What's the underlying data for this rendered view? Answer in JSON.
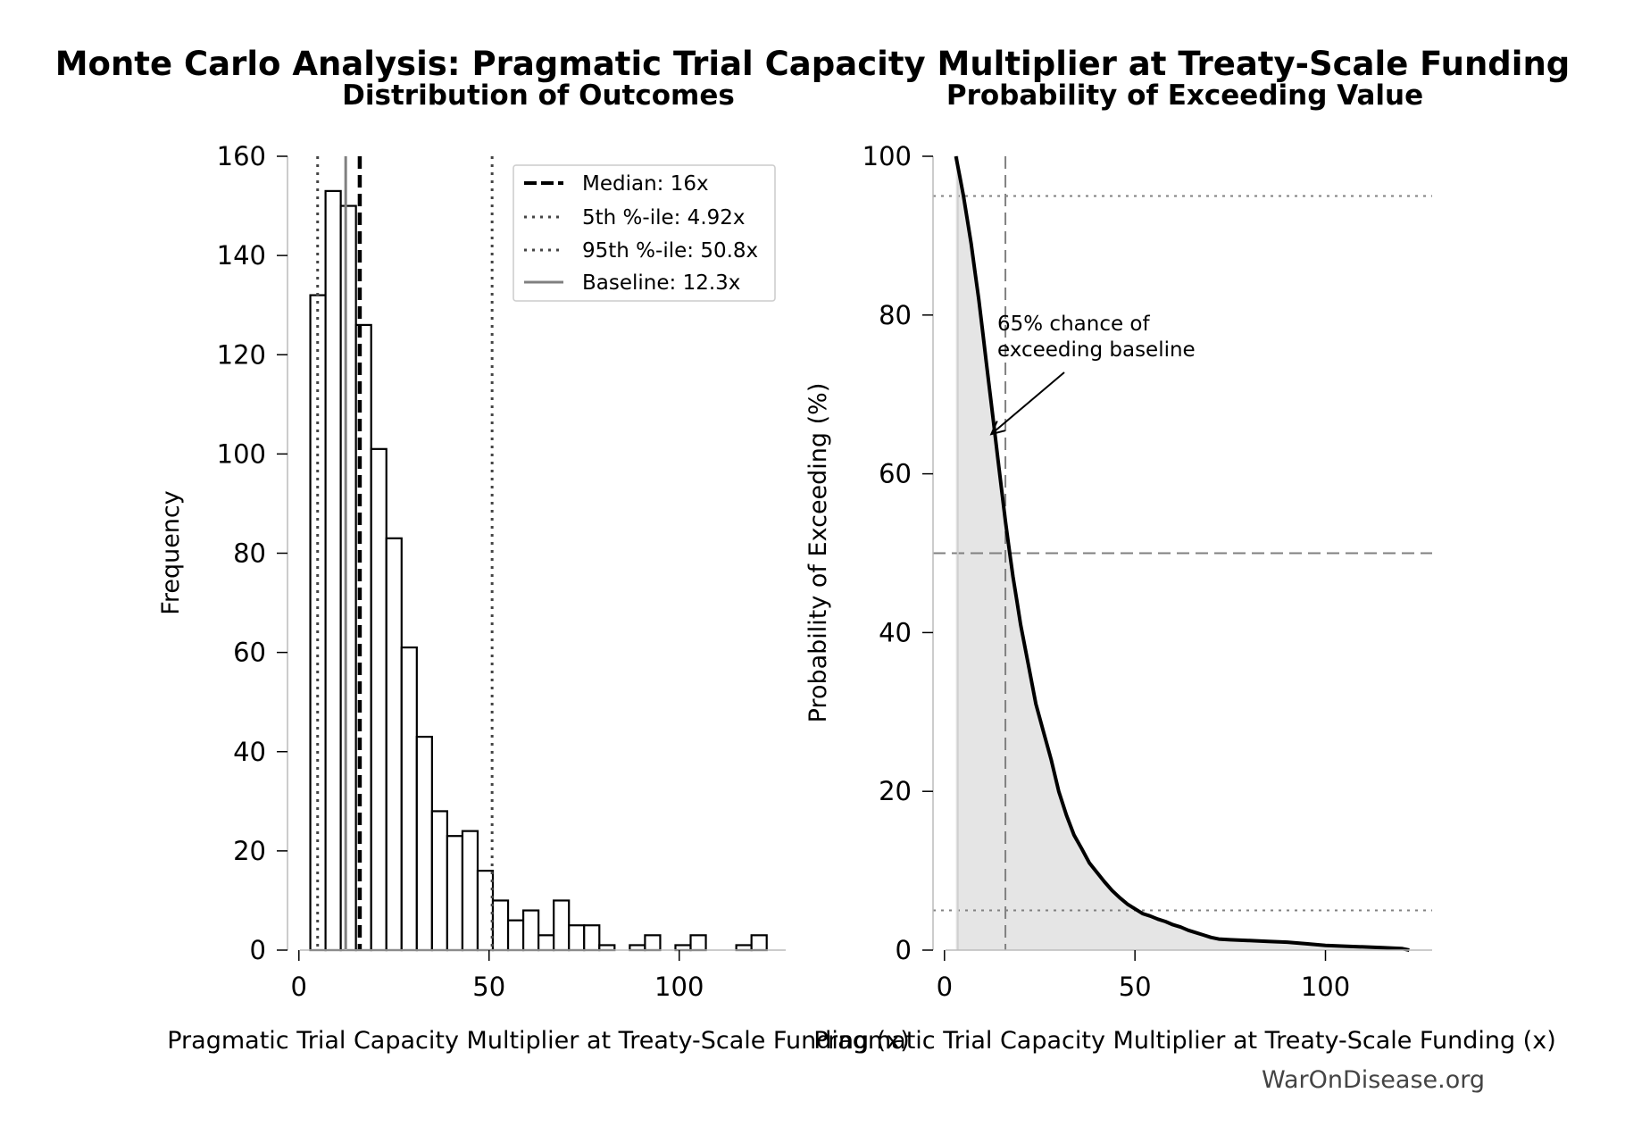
{
  "figure": {
    "title": "Monte Carlo Analysis: Pragmatic Trial Capacity Multiplier at Treaty-Scale Funding",
    "watermark": "WarOnDisease.org"
  },
  "chart_data": [
    {
      "type": "bar",
      "title": "Distribution of Outcomes",
      "xlabel": "Pragmatic Trial Capacity Multiplier at Treaty-Scale Funding (x)",
      "ylabel": "Frequency",
      "xlim": [
        -3,
        128
      ],
      "ylim": [
        0,
        160
      ],
      "xticks": [
        0,
        50,
        100
      ],
      "yticks": [
        0,
        20,
        40,
        60,
        80,
        100,
        120,
        140,
        160
      ],
      "bin_width": 4,
      "bins": [
        {
          "x0": 3,
          "count": 132
        },
        {
          "x0": 7,
          "count": 153
        },
        {
          "x0": 11,
          "count": 150
        },
        {
          "x0": 15,
          "count": 126
        },
        {
          "x0": 19,
          "count": 101
        },
        {
          "x0": 23,
          "count": 83
        },
        {
          "x0": 27,
          "count": 61
        },
        {
          "x0": 31,
          "count": 43
        },
        {
          "x0": 35,
          "count": 28
        },
        {
          "x0": 39,
          "count": 23
        },
        {
          "x0": 43,
          "count": 24
        },
        {
          "x0": 47,
          "count": 16
        },
        {
          "x0": 51,
          "count": 10
        },
        {
          "x0": 55,
          "count": 6
        },
        {
          "x0": 59,
          "count": 8
        },
        {
          "x0": 63,
          "count": 3
        },
        {
          "x0": 67,
          "count": 10
        },
        {
          "x0": 71,
          "count": 5
        },
        {
          "x0": 75,
          "count": 5
        },
        {
          "x0": 79,
          "count": 1
        },
        {
          "x0": 83,
          "count": 0
        },
        {
          "x0": 87,
          "count": 1
        },
        {
          "x0": 91,
          "count": 3
        },
        {
          "x0": 95,
          "count": 0
        },
        {
          "x0": 99,
          "count": 1
        },
        {
          "x0": 103,
          "count": 3
        },
        {
          "x0": 107,
          "count": 0
        },
        {
          "x0": 111,
          "count": 0
        },
        {
          "x0": 115,
          "count": 1
        },
        {
          "x0": 119,
          "count": 3
        }
      ],
      "reference_lines": [
        {
          "label": "Median: 16x",
          "value": 16,
          "style": "dashed",
          "color": "#000000"
        },
        {
          "label": "5th %-ile: 4.92x",
          "value": 4.92,
          "style": "dotted",
          "color": "#444444"
        },
        {
          "label": "95th %-ile: 50.8x",
          "value": 50.8,
          "style": "dotted",
          "color": "#444444"
        },
        {
          "label": "Baseline: 12.3x",
          "value": 12.3,
          "style": "solid",
          "color": "#808080"
        }
      ],
      "legend_position": "top-right",
      "grid": false
    },
    {
      "type": "area",
      "title": "Probability of Exceeding Value",
      "xlabel": "Pragmatic Trial Capacity Multiplier at Treaty-Scale Funding (x)",
      "ylabel": "Probability of Exceeding (%)",
      "xlim": [
        -3,
        128
      ],
      "ylim": [
        0,
        100
      ],
      "xticks": [
        0,
        50,
        100
      ],
      "yticks": [
        0,
        20,
        40,
        60,
        80,
        100
      ],
      "series": [
        {
          "x": [
            3,
            4,
            5,
            6,
            7,
            8,
            9,
            10,
            11,
            12,
            13,
            14,
            15,
            16,
            17,
            18,
            19,
            20,
            22,
            24,
            26,
            28,
            30,
            32,
            34,
            36,
            38,
            40,
            42,
            44,
            46,
            48,
            50,
            52,
            54,
            56,
            58,
            60,
            62,
            64,
            66,
            68,
            70,
            72,
            75,
            80,
            85,
            90,
            95,
            100,
            105,
            110,
            115,
            120,
            122
          ],
          "y": [
            100,
            97.5,
            95,
            92,
            89,
            85.5,
            82,
            78,
            74,
            70,
            66,
            62,
            58,
            54,
            50.5,
            47,
            44,
            41,
            36,
            31,
            27.5,
            24,
            20,
            17,
            14.5,
            12.8,
            11,
            9.8,
            8.6,
            7.5,
            6.6,
            5.8,
            5.2,
            4.6,
            4.3,
            3.9,
            3.6,
            3.2,
            2.9,
            2.5,
            2.2,
            1.9,
            1.6,
            1.4,
            1.3,
            1.2,
            1.1,
            1.0,
            0.8,
            0.6,
            0.5,
            0.4,
            0.3,
            0.2,
            0.0
          ]
        }
      ],
      "reference_lines": [
        {
          "axis": "y",
          "value": 95,
          "style": "dotted",
          "color": "#808080"
        },
        {
          "axis": "y",
          "value": 50,
          "style": "dashed",
          "color": "#808080"
        },
        {
          "axis": "y",
          "value": 5,
          "style": "dotted",
          "color": "#808080"
        },
        {
          "axis": "x",
          "value": 16,
          "style": "dashed",
          "color": "#808080"
        },
        {
          "axis": "x",
          "value": 3.5,
          "style": "solid",
          "color": "#d0d0d0"
        }
      ],
      "annotation": {
        "text": [
          "65% chance of",
          "exceeding baseline"
        ],
        "x": 12.3,
        "y": 65
      },
      "grid": false
    }
  ]
}
